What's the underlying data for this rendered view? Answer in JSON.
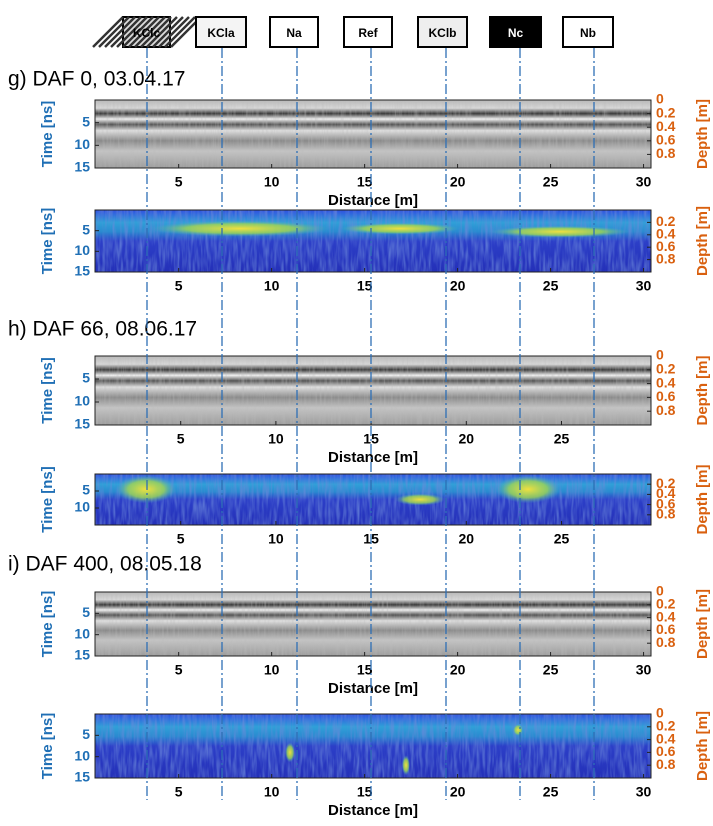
{
  "legend": [
    "KClc",
    "KCla",
    "Na",
    "Ref",
    "KClb",
    "Nc",
    "Nb"
  ],
  "panels": [
    {
      "label": "g) DAF 0, 03.04.17",
      "plots": [
        {
          "kind": "gray",
          "xlim": [
            0.5,
            30.4
          ],
          "xticks": [
            5,
            10,
            15,
            20,
            25,
            30
          ],
          "ylim": [
            0,
            15
          ],
          "yticks": [
            5,
            10,
            15
          ],
          "y2lim": [
            0,
            1
          ],
          "y2ticks": [
            0,
            0.2,
            0.4,
            0.6,
            0.8
          ],
          "ylabel": "Time [ns]",
          "y2label": "Depth [m]",
          "xlabel": "Distance [m]"
        },
        {
          "kind": "color",
          "xlim": [
            0.5,
            30.4
          ],
          "xticks": [
            5,
            10,
            15,
            20,
            25,
            30
          ],
          "ylim": [
            0,
            15
          ],
          "yticks": [
            5,
            10,
            15
          ],
          "y2lim": [
            0,
            1
          ],
          "y2ticks": [
            0.2,
            0.4,
            0.6,
            0.8
          ],
          "ylabel": "Time [ns]",
          "y2label": "Depth [m]"
        }
      ]
    },
    {
      "label": "h) DAF 66, 08.06.17",
      "plots": [
        {
          "kind": "gray",
          "xlim": [
            0.5,
            29.7
          ],
          "xticks": [
            5,
            10,
            15,
            20,
            25
          ],
          "ylim": [
            0,
            15
          ],
          "yticks": [
            5,
            10,
            15
          ],
          "y2lim": [
            0,
            1
          ],
          "y2ticks": [
            0,
            0.2,
            0.4,
            0.6,
            0.8
          ],
          "ylabel": "Time [ns]",
          "y2label": "Depth [m]",
          "xlabel": "Distance [m]"
        },
        {
          "kind": "color",
          "xlim": [
            0.5,
            29.7
          ],
          "xticks": [
            5,
            10,
            15,
            20,
            25
          ],
          "ylim": [
            0,
            15
          ],
          "yticks": [
            5,
            10
          ],
          "y2lim": [
            0,
            1
          ],
          "y2ticks": [
            0.2,
            0.4,
            0.6,
            0.8
          ],
          "ylabel": "Time [ns]",
          "y2label": "Depth [m]"
        }
      ]
    },
    {
      "label": "i) DAF 400, 08.05.18",
      "plots": [
        {
          "kind": "gray",
          "xlim": [
            0.5,
            30.4
          ],
          "xticks": [
            5,
            10,
            15,
            20,
            25,
            30
          ],
          "ylim": [
            0,
            15
          ],
          "yticks": [
            5,
            10,
            15
          ],
          "y2lim": [
            0,
            1
          ],
          "y2ticks": [
            0,
            0.2,
            0.4,
            0.6,
            0.8
          ],
          "ylabel": "Time [ns]",
          "y2label": "Depth [m]",
          "xlabel": "Distance [m]"
        },
        {
          "kind": "color",
          "xlim": [
            0.5,
            30.4
          ],
          "xticks": [
            5,
            10,
            15,
            20,
            25,
            30
          ],
          "ylim": [
            0,
            15
          ],
          "yticks": [
            5,
            10,
            15
          ],
          "y2lim": [
            0,
            1
          ],
          "y2ticks": [
            0,
            0.2,
            0.4,
            0.6,
            0.8
          ],
          "ylabel": "Time [ns]",
          "y2label": "Depth [m]",
          "xlabel": "Distance [m]"
        }
      ]
    }
  ]
}
